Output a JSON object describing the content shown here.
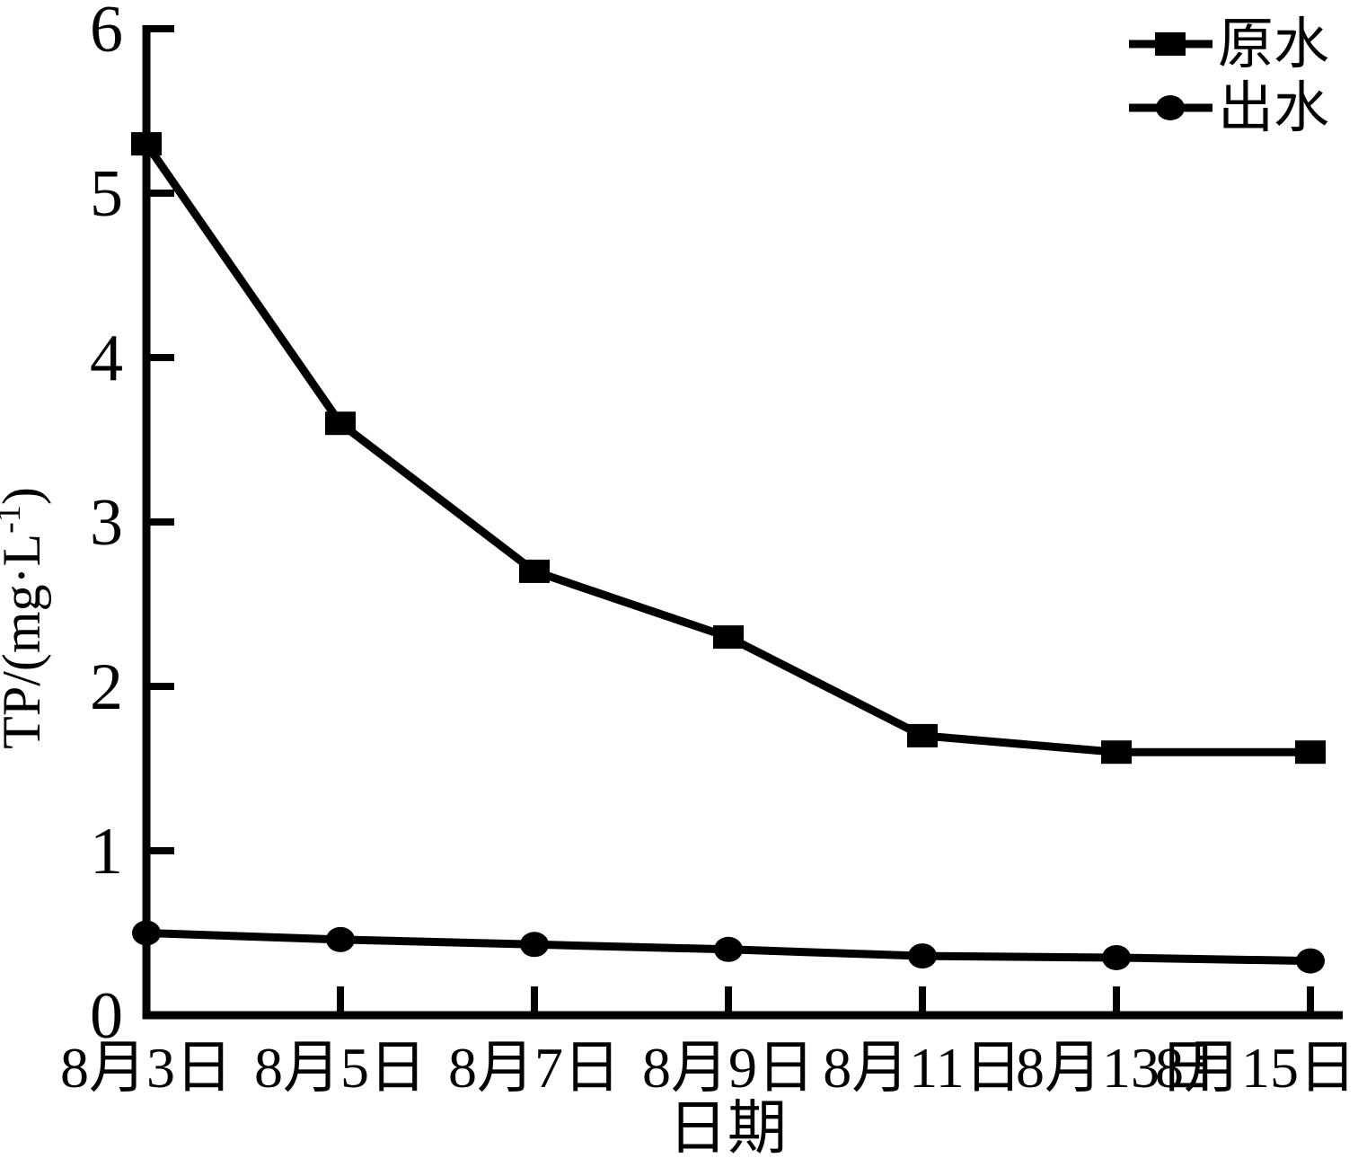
{
  "colors": {
    "foreground": "#000000",
    "background": "#ffffff"
  },
  "chart_data": {
    "type": "line",
    "title": "",
    "xlabel": "日期",
    "ylabel": "TP/(mg·L⁻¹)",
    "ylabel_parts": {
      "prefix": "TP/(mg·L",
      "superscript": "-1",
      "suffix": ")"
    },
    "categories": [
      "8月3日",
      "8月5日",
      "8月7日",
      "8月9日",
      "8月11日",
      "8月13日",
      "8月15日"
    ],
    "series": [
      {
        "name": "原水",
        "marker": "square",
        "values": [
          5.3,
          3.6,
          2.7,
          2.3,
          1.7,
          1.6,
          1.6
        ]
      },
      {
        "name": "出水",
        "marker": "circle",
        "values": [
          0.5,
          0.46,
          0.43,
          0.4,
          0.36,
          0.35,
          0.33
        ]
      }
    ],
    "ylim": [
      0,
      6
    ],
    "yticks": [
      0,
      1,
      2,
      3,
      4,
      5,
      6
    ],
    "grid": false,
    "legend_position": "top-right"
  }
}
